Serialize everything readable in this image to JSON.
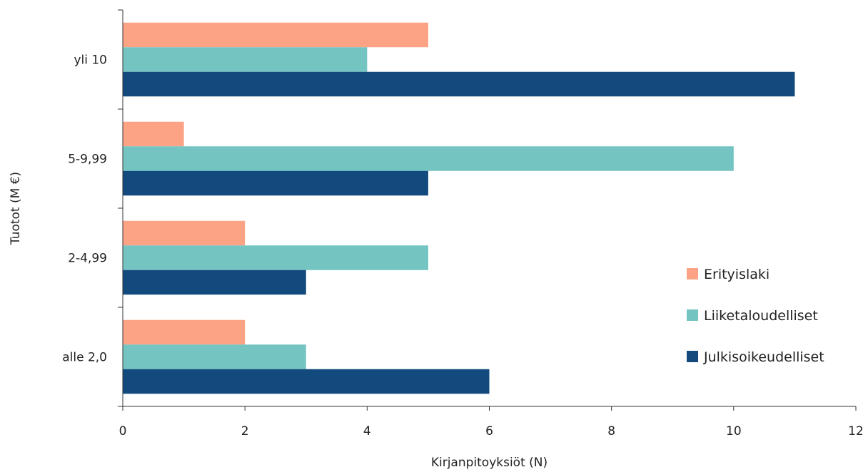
{
  "chart_data": {
    "type": "bar",
    "orientation": "horizontal",
    "categories": [
      "alle 2,0",
      "2-4,99",
      "5-9,99",
      "yli 10"
    ],
    "series": [
      {
        "name": "Erityislaki",
        "color": "#FCA285",
        "values": [
          2,
          2,
          1,
          5
        ]
      },
      {
        "name": "Liiketaloudelliset",
        "color": "#74C4C2",
        "values": [
          3,
          5,
          10,
          4
        ]
      },
      {
        "name": "Julkisoikeudelliset",
        "color": "#124A7E",
        "values": [
          6,
          3,
          5,
          11
        ]
      }
    ],
    "xlabel": "Kirjanpitoyksiöt (N)",
    "ylabel": "Tuotot (M €)",
    "xlim": [
      0,
      12
    ],
    "xticks": [
      0,
      2,
      4,
      6,
      8,
      10,
      12
    ],
    "grid": false,
    "legend_position": "right"
  }
}
